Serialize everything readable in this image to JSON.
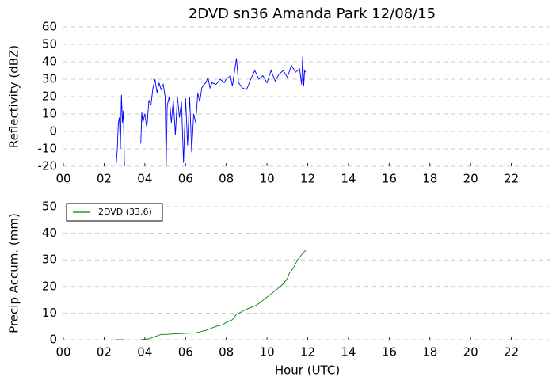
{
  "chart_data": [
    {
      "type": "line",
      "title": "2DVD sn36 Amanda Park 12/08/15",
      "y_label": "Reflectivity (dBZ)",
      "x": [
        2.6,
        2.65,
        2.7,
        2.75,
        2.8,
        2.85,
        2.9,
        2.95,
        3.0,
        3.4,
        3.8,
        3.85,
        3.9,
        4.0,
        4.1,
        4.2,
        4.3,
        4.4,
        4.5,
        4.6,
        4.7,
        4.8,
        4.9,
        5.0,
        5.05,
        5.1,
        5.2,
        5.3,
        5.4,
        5.5,
        5.6,
        5.7,
        5.8,
        5.9,
        6.0,
        6.1,
        6.2,
        6.3,
        6.4,
        6.5,
        6.6,
        6.7,
        6.8,
        6.9,
        7.0,
        7.1,
        7.2,
        7.3,
        7.5,
        7.7,
        7.9,
        8.0,
        8.2,
        8.3,
        8.5,
        8.6,
        8.8,
        9.0,
        9.2,
        9.4,
        9.6,
        9.8,
        10.0,
        10.2,
        10.4,
        10.6,
        10.8,
        11.0,
        11.2,
        11.4,
        11.6,
        11.7,
        11.75,
        11.8,
        11.85,
        11.9
      ],
      "series": [
        {
          "color": "#0000ff",
          "values": [
            -18,
            -10,
            5,
            8,
            -10,
            21,
            5,
            12,
            -20,
            null,
            -7,
            11,
            5,
            10,
            2,
            18,
            15,
            25,
            30,
            22,
            28,
            24,
            27,
            20,
            -20,
            15,
            20,
            5,
            18,
            -2,
            20,
            8,
            17,
            -18,
            19,
            -8,
            20,
            -12,
            10,
            5,
            22,
            17,
            25,
            27,
            28,
            31,
            25,
            28,
            27,
            30,
            28,
            30,
            32,
            26,
            42,
            28,
            25,
            24,
            30,
            35,
            30,
            32,
            28,
            35,
            29,
            33,
            35,
            31,
            38,
            34,
            36,
            27,
            43,
            26,
            35,
            34
          ]
        }
      ],
      "xlim": [
        0,
        24
      ],
      "xticks": [
        {
          "value": 0,
          "label": "00"
        },
        {
          "value": 2,
          "label": "02"
        },
        {
          "value": 4,
          "label": "04"
        },
        {
          "value": 6,
          "label": "06"
        },
        {
          "value": 8,
          "label": "08"
        },
        {
          "value": 10,
          "label": "10"
        },
        {
          "value": 12,
          "label": "12"
        },
        {
          "value": 14,
          "label": "14"
        },
        {
          "value": 16,
          "label": "16"
        },
        {
          "value": 18,
          "label": "18"
        },
        {
          "value": 20,
          "label": "20"
        },
        {
          "value": 22,
          "label": "22"
        }
      ],
      "ylim": [
        -20,
        60
      ],
      "yticks": [
        -20,
        -10,
        0,
        10,
        20,
        30,
        40,
        50,
        60
      ],
      "grid": true
    },
    {
      "type": "line",
      "y_label": "Precip Accum. (mm)",
      "x_label": "Hour (UTC)",
      "legend": "upper left",
      "x": [
        2.6,
        3.0,
        3.4,
        3.8,
        4.2,
        4.5,
        4.8,
        5.0,
        5.5,
        6.0,
        6.5,
        7.0,
        7.5,
        7.8,
        8.0,
        8.3,
        8.5,
        9.0,
        9.5,
        10.0,
        10.5,
        10.8,
        11.0,
        11.1,
        11.3,
        11.5,
        11.7,
        11.9
      ],
      "series": [
        {
          "name": "2DVD (33.6)",
          "color": "#008000",
          "values": [
            0,
            0,
            null,
            0,
            0.3,
            1.2,
            2,
            2,
            2.2,
            2.4,
            2.6,
            3.5,
            5,
            5.5,
            6.5,
            7.5,
            9.5,
            11.5,
            13,
            16,
            19,
            21,
            23,
            25,
            27,
            30,
            32,
            33.6
          ]
        }
      ],
      "xlim": [
        0,
        24
      ],
      "xticks": [
        {
          "value": 0,
          "label": "00"
        },
        {
          "value": 2,
          "label": "02"
        },
        {
          "value": 4,
          "label": "04"
        },
        {
          "value": 6,
          "label": "06"
        },
        {
          "value": 8,
          "label": "08"
        },
        {
          "value": 10,
          "label": "10"
        },
        {
          "value": 12,
          "label": "12"
        },
        {
          "value": 14,
          "label": "14"
        },
        {
          "value": 16,
          "label": "16"
        },
        {
          "value": 18,
          "label": "18"
        },
        {
          "value": 20,
          "label": "20"
        },
        {
          "value": 22,
          "label": "22"
        }
      ],
      "ylim": [
        0,
        50
      ],
      "yticks": [
        0,
        10,
        20,
        30,
        40,
        50
      ],
      "grid": true
    }
  ]
}
